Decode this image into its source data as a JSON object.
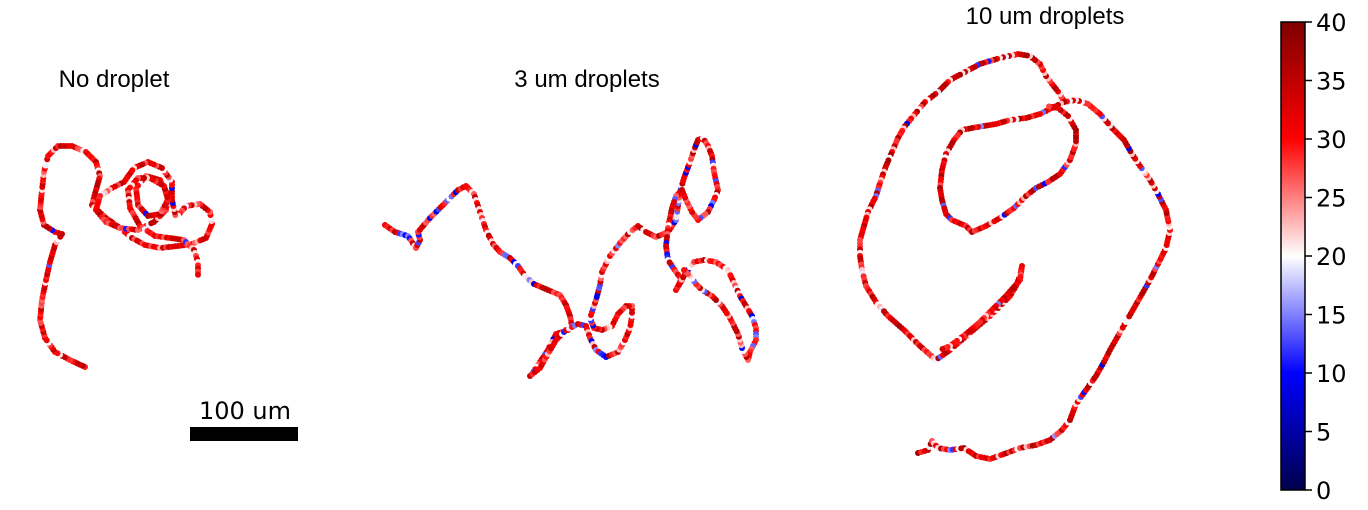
{
  "chart_data": {
    "type": "scatter",
    "panels": [
      {
        "title": "No droplet"
      },
      {
        "title": "3 um droplets"
      },
      {
        "title": "10 um droplets"
      }
    ],
    "colorbar": {
      "colormap": "seismic",
      "range": [
        0,
        40
      ],
      "ticks": [
        "0",
        "5",
        "10",
        "15",
        "20",
        "25",
        "30",
        "35",
        "40"
      ]
    },
    "scale_bar": {
      "label": "100 um",
      "length_um": 100
    },
    "colors": {
      "low": "#00004c",
      "mid": "#ffffff",
      "high": "#7f0000"
    }
  }
}
